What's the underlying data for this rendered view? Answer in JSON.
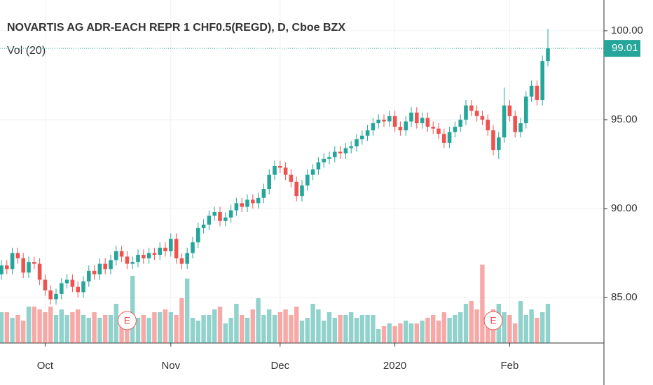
{
  "chart_data": {
    "type": "candlestick",
    "title": "NOVARTIS AG ADR-EACH REPR 1 CHF0.5(REGD), D, Cboe BZX",
    "subtitle": "Vol (20)",
    "categories": [
      null,
      null,
      null,
      null,
      null,
      null,
      null,
      null,
      "Oct",
      null,
      null,
      null,
      null,
      null,
      null,
      null,
      null,
      null,
      null,
      null,
      null,
      null,
      null,
      null,
      null,
      null,
      null,
      null,
      null,
      null,
      null,
      "Nov",
      null,
      null,
      null,
      null,
      null,
      null,
      null,
      null,
      null,
      null,
      null,
      null,
      null,
      null,
      null,
      null,
      null,
      null,
      null,
      "Dec",
      null,
      null,
      null,
      null,
      null,
      null,
      null,
      null,
      null,
      null,
      null,
      null,
      null,
      null,
      null,
      null,
      null,
      null,
      null,
      null,
      "2020",
      null,
      null,
      null,
      null,
      null,
      null,
      null,
      null,
      null,
      null,
      null,
      null,
      null,
      null,
      null,
      null,
      null,
      null,
      null,
      null,
      "Feb",
      null,
      null,
      null,
      null,
      null,
      null,
      null
    ],
    "open": [
      86.3,
      86.8,
      86.6,
      87.5,
      87.2,
      86.4,
      87.0,
      86.9,
      86.0,
      85.4,
      84.9,
      85.2,
      85.8,
      86.0,
      85.6,
      85.3,
      85.9,
      86.5,
      86.3,
      86.9,
      86.6,
      87.1,
      87.6,
      87.3,
      86.9,
      87.0,
      87.4,
      87.2,
      87.5,
      87.4,
      87.8,
      87.6,
      88.3,
      87.2,
      86.9,
      87.5,
      88.1,
      88.9,
      89.1,
      89.6,
      89.8,
      89.3,
      89.5,
      89.9,
      90.3,
      90.1,
      90.5,
      90.3,
      90.6,
      91.1,
      91.9,
      92.4,
      92.3,
      91.9,
      91.5,
      90.7,
      91.3,
      91.9,
      92.2,
      92.6,
      92.8,
      92.9,
      93.2,
      93.1,
      93.4,
      93.5,
      93.9,
      94.1,
      94.4,
      94.8,
      95.0,
      94.9,
      95.2,
      94.6,
      94.4,
      94.9,
      95.4,
      94.8,
      95.1,
      94.6,
      94.5,
      94.2,
      93.7,
      94.3,
      94.6,
      95.0,
      95.8,
      95.5,
      95.2,
      95.0,
      94.4,
      93.3,
      94.0,
      95.8,
      95.2,
      94.3,
      94.8,
      96.3,
      96.9,
      96.1,
      98.3
    ],
    "high": [
      87.1,
      87.1,
      87.8,
      87.8,
      87.5,
      87.3,
      87.3,
      87.2,
      86.3,
      85.7,
      85.5,
      86.1,
      86.3,
      86.3,
      85.9,
      86.2,
      86.8,
      86.8,
      87.2,
      87.2,
      87.4,
      87.9,
      87.9,
      87.6,
      87.3,
      87.7,
      87.7,
      87.8,
      87.8,
      88.1,
      88.1,
      88.6,
      88.6,
      87.5,
      87.8,
      88.4,
      89.2,
      89.4,
      89.9,
      90.1,
      90.1,
      89.8,
      90.2,
      90.6,
      90.6,
      90.8,
      90.8,
      90.9,
      91.4,
      92.2,
      92.7,
      92.7,
      92.6,
      92.2,
      91.8,
      91.6,
      92.2,
      92.5,
      92.9,
      93.1,
      93.2,
      93.5,
      93.5,
      93.7,
      93.8,
      94.2,
      94.4,
      94.7,
      95.1,
      95.3,
      95.3,
      95.5,
      95.5,
      94.9,
      95.2,
      95.7,
      95.7,
      95.4,
      95.4,
      94.9,
      94.8,
      94.5,
      94.6,
      94.9,
      95.3,
      96.1,
      96.1,
      95.8,
      95.5,
      95.3,
      94.7,
      94.3,
      96.8,
      96.1,
      95.5,
      95.1,
      96.6,
      97.2,
      97.2,
      98.6,
      100.1
    ],
    "low": [
      86.0,
      86.3,
      86.3,
      86.9,
      86.1,
      86.1,
      86.6,
      85.7,
      85.1,
      84.6,
      84.6,
      84.9,
      85.5,
      85.3,
      85.0,
      85.0,
      85.6,
      86.0,
      86.0,
      86.3,
      86.3,
      86.8,
      87.0,
      86.6,
      86.6,
      86.7,
      86.9,
      86.9,
      87.1,
      87.1,
      87.3,
      87.3,
      86.9,
      86.6,
      86.6,
      87.2,
      87.8,
      88.6,
      88.8,
      89.3,
      89.0,
      89.0,
      89.2,
      89.6,
      89.8,
      89.8,
      90.0,
      90.0,
      90.3,
      90.8,
      91.6,
      92.0,
      91.6,
      91.2,
      90.4,
      90.4,
      91.0,
      91.6,
      91.9,
      92.3,
      92.5,
      92.6,
      92.8,
      92.8,
      93.1,
      93.2,
      93.6,
      93.8,
      94.1,
      94.5,
      94.6,
      94.6,
      94.3,
      94.1,
      94.1,
      94.6,
      94.5,
      94.5,
      94.3,
      94.2,
      93.9,
      93.4,
      93.4,
      94.0,
      94.3,
      94.7,
      95.2,
      94.9,
      94.7,
      94.1,
      93.0,
      92.8,
      93.7,
      94.9,
      94.0,
      94.0,
      94.5,
      96.0,
      95.8,
      95.8,
      98.0
    ],
    "close": [
      86.8,
      86.6,
      87.5,
      87.2,
      86.4,
      87.0,
      86.9,
      86.0,
      85.4,
      84.9,
      85.2,
      85.8,
      86.0,
      85.6,
      85.3,
      85.9,
      86.5,
      86.3,
      86.9,
      86.6,
      87.1,
      87.6,
      87.3,
      86.9,
      87.0,
      87.4,
      87.2,
      87.5,
      87.4,
      87.8,
      87.6,
      88.3,
      87.2,
      86.9,
      87.5,
      88.1,
      88.9,
      89.1,
      89.6,
      89.8,
      89.3,
      89.5,
      89.9,
      90.3,
      90.1,
      90.5,
      90.3,
      90.6,
      91.1,
      91.9,
      92.4,
      92.3,
      91.9,
      91.5,
      90.7,
      91.3,
      91.9,
      92.2,
      92.6,
      92.8,
      92.9,
      93.2,
      93.1,
      93.4,
      93.5,
      93.9,
      94.1,
      94.4,
      94.8,
      95.0,
      94.9,
      95.2,
      94.6,
      94.4,
      94.9,
      95.4,
      94.8,
      95.1,
      94.6,
      94.5,
      94.2,
      93.7,
      94.3,
      94.6,
      95.0,
      95.8,
      95.5,
      95.2,
      95.0,
      94.4,
      93.3,
      94.0,
      95.8,
      95.2,
      94.3,
      94.8,
      96.3,
      96.9,
      96.1,
      98.3,
      99.01
    ],
    "volume": [
      1.1,
      1.1,
      0.9,
      1.0,
      0.8,
      1.3,
      1.3,
      1.2,
      1.1,
      1.3,
      1.0,
      1.2,
      1.0,
      1.1,
      1.2,
      1.0,
      0.9,
      1.1,
      0.9,
      1.0,
      1.0,
      1.4,
      0.8,
      0.9,
      2.4,
      0.9,
      1.0,
      0.9,
      1.1,
      1.1,
      1.2,
      1.1,
      1.0,
      1.6,
      2.3,
      0.9,
      0.8,
      1.0,
      1.0,
      1.2,
      1.3,
      0.7,
      0.9,
      1.4,
      1.0,
      0.9,
      1.2,
      1.6,
      1.0,
      1.2,
      1.0,
      1.1,
      1.2,
      1.0,
      1.3,
      0.8,
      0.9,
      1.4,
      1.2,
      0.8,
      1.1,
      0.9,
      1.0,
      1.0,
      1.1,
      0.9,
      1.0,
      1.0,
      1.0,
      0.5,
      0.6,
      0.7,
      0.6,
      0.7,
      0.8,
      0.7,
      0.7,
      0.8,
      0.9,
      1.0,
      0.8,
      1.1,
      0.9,
      1.0,
      1.1,
      1.4,
      1.5,
      1.2,
      2.8,
      0.9,
      1.2,
      1.4,
      1.1,
      1.0,
      0.7,
      1.5,
      1.0,
      1.2,
      0.9,
      1.1,
      1.4
    ],
    "up_color": "#26a69a",
    "down_color": "#ef5350",
    "ylim": [
      82.44,
      101.73
    ],
    "yticks": [
      {
        "value": 85,
        "label": "85.00"
      },
      {
        "value": 90,
        "label": "90.00"
      },
      {
        "value": 95,
        "label": "95.00"
      },
      {
        "value": 100,
        "label": "100.00"
      }
    ],
    "y2lim": [
      0,
      4
    ],
    "grid": true,
    "events": [
      {
        "index": 23,
        "label": "E"
      },
      {
        "index": 90,
        "label": "E"
      }
    ]
  }
}
